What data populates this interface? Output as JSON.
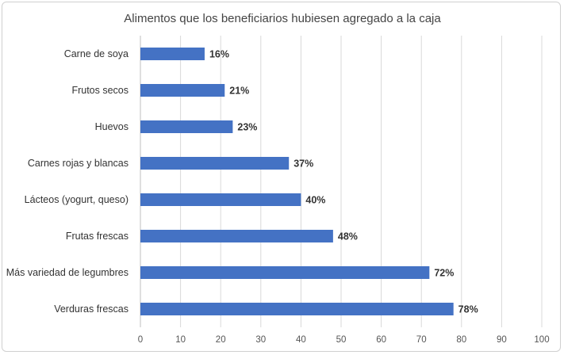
{
  "chart_data": {
    "type": "bar",
    "orientation": "horizontal",
    "title": "Alimentos que los beneficiarios hubiesen agregado a la caja",
    "categories": [
      "Carne de soya",
      "Frutos secos",
      "Huevos",
      "Carnes rojas y blancas",
      "Lácteos (yogurt, queso)",
      "Frutas frescas",
      "Más variedad de legumbres",
      "Verduras frescas"
    ],
    "values": [
      16,
      21,
      23,
      37,
      40,
      48,
      72,
      78
    ],
    "data_labels": [
      "16%",
      "21%",
      "23%",
      "37%",
      "40%",
      "48%",
      "72%",
      "78%"
    ],
    "xlim": [
      0,
      100
    ],
    "xticks": [
      0,
      10,
      20,
      30,
      40,
      50,
      60,
      70,
      80,
      90,
      100
    ],
    "grid": "vertical",
    "legend": "none",
    "bar_color": "#4472C4"
  }
}
